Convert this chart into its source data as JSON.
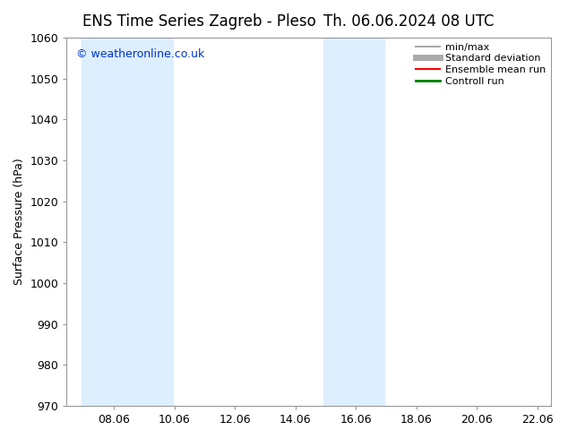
{
  "title_left": "ENS Time Series Zagreb - Pleso",
  "title_right": "Th. 06.06.2024 08 UTC",
  "ylabel": "Surface Pressure (hPa)",
  "ylim": [
    970,
    1060
  ],
  "yticks": [
    970,
    980,
    990,
    1000,
    1010,
    1020,
    1030,
    1040,
    1050,
    1060
  ],
  "xlim": [
    6.5,
    22.5
  ],
  "xticks": [
    8.06,
    10.06,
    12.06,
    14.06,
    16.06,
    18.06,
    20.06,
    22.06
  ],
  "xtick_labels": [
    "08.06",
    "10.06",
    "12.06",
    "14.06",
    "16.06",
    "18.06",
    "20.06",
    "22.06"
  ],
  "shaded_bands": [
    {
      "xmin": 7.0,
      "xmax": 10.0
    },
    {
      "xmin": 15.0,
      "xmax": 17.0
    }
  ],
  "shade_color": "#ddeeff",
  "background_color": "#ffffff",
  "watermark_text": "© weatheronline.co.uk",
  "watermark_color": "#0033cc",
  "legend_items": [
    {
      "label": "min/max",
      "color": "#aaaaaa",
      "lw": 1.5
    },
    {
      "label": "Standard deviation",
      "color": "#aaaaaa",
      "lw": 5
    },
    {
      "label": "Ensemble mean run",
      "color": "#ff0000",
      "lw": 1.5
    },
    {
      "label": "Controll run",
      "color": "#008000",
      "lw": 2
    }
  ],
  "title_fontsize": 12,
  "axis_label_fontsize": 9,
  "tick_fontsize": 9,
  "watermark_fontsize": 9,
  "legend_fontsize": 8
}
